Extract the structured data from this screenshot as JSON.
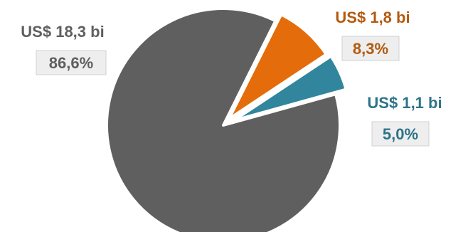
{
  "chart_data": {
    "type": "pie",
    "slices": [
      {
        "value_label": "US$ 18,3 bi",
        "percent_label": "86,6%",
        "percent": 86.6,
        "color": "#5f5f5f",
        "label_color": "#5f5f5f"
      },
      {
        "value_label": "US$ 1,8 bi",
        "percent_label": "8,3%",
        "percent": 8.3,
        "color": "#e46c0a",
        "label_color": "#b35a0f"
      },
      {
        "value_label": "US$ 1,1 bi",
        "percent_label": "5,0%",
        "percent": 5.0,
        "color": "#31859c",
        "label_color": "#2e7389"
      }
    ],
    "legend": "none",
    "label_box_fill": "#eeeeee",
    "label_box_stroke": "#d0d0d0"
  }
}
